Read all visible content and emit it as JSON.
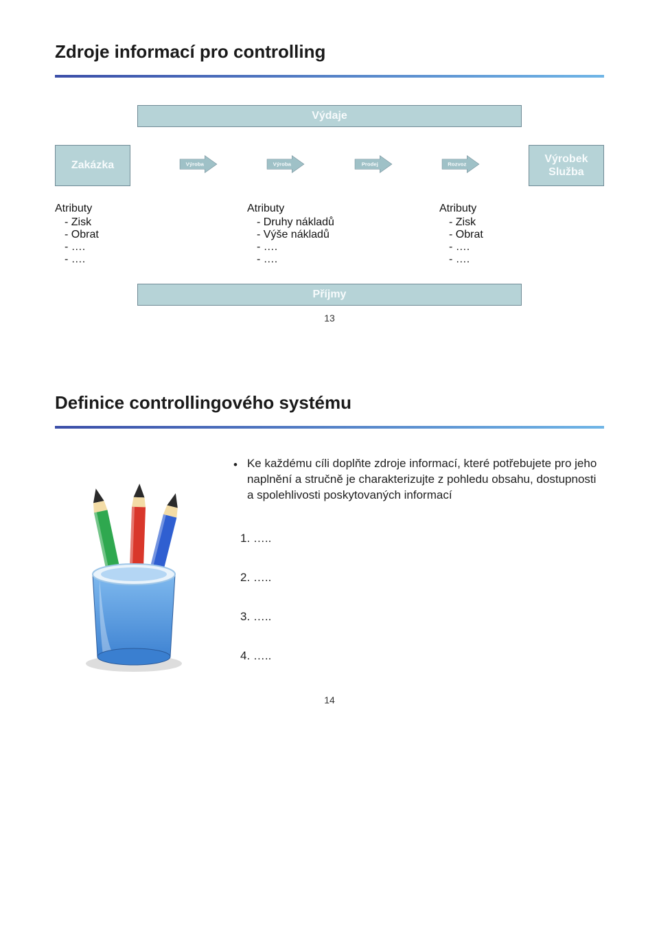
{
  "colors": {
    "box_fill": "#b6d3d7",
    "box_border": "#6f8a95",
    "box_text": "#f7fbfc",
    "arrow_fill": "#9fc1c7",
    "arrow_border": "#6f8a95",
    "rule_gradient_from": "#3b4ea8",
    "rule_gradient_to": "#6fb5e6",
    "page_bg": "#ffffff",
    "text": "#1a1a1a",
    "cup_body_top": "#7fb9ee",
    "cup_body_bottom": "#3a7fd0",
    "cup_rim": "#e9f3fb",
    "pencil_green": "#2fa84f",
    "pencil_red": "#d9372b",
    "pencil_blue": "#2f5fd1",
    "pencil_wood": "#f3dca6",
    "pencil_tip": "#2a2a2a"
  },
  "slide1": {
    "title": "Zdroje informací pro controlling",
    "top_bar": "Výdaje",
    "flow": {
      "box_left": "Zakázka",
      "arrow_labels": [
        "Výroba",
        "Výroba",
        "Prodej",
        "Rozvoz"
      ],
      "box_right_line1": "Výrobek",
      "box_right_line2": "Služba"
    },
    "attr_cols": [
      {
        "header": "Atributy",
        "items": [
          "Zisk",
          "Obrat",
          "….",
          "…."
        ]
      },
      {
        "header": "Atributy",
        "items": [
          "Druhy nákladů",
          "Výše nákladů",
          "….",
          "…."
        ]
      },
      {
        "header": "Atributy",
        "items": [
          "Zisk",
          "Obrat",
          "….",
          "…."
        ]
      }
    ],
    "bottom_bar": "Příjmy",
    "page_number": "13"
  },
  "slide2": {
    "title": "Definice controllingového systému",
    "bullet": "Ke každému cíli doplňte zdroje informací, které potřebujete pro jeho naplnění a stručně je charakterizujte z pohledu obsahu, dostupnosti a spolehlivosti poskytovaných informací",
    "list": [
      "1.   …..",
      "2.   …..",
      "3.   …..",
      "4.   ….."
    ],
    "page_number": "14"
  }
}
